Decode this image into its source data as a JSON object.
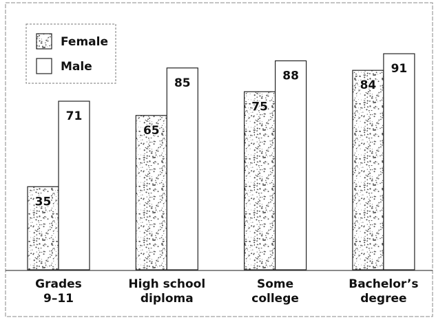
{
  "chart_data": {
    "type": "bar",
    "categories": [
      [
        "Grades",
        "9–11"
      ],
      [
        "High school",
        "diploma"
      ],
      [
        "Some",
        "college"
      ],
      [
        "Bachelor’s",
        "degree"
      ]
    ],
    "series": [
      {
        "name": "Female",
        "color": "#555555",
        "values": [
          35,
          65,
          75,
          84
        ]
      },
      {
        "name": "Male",
        "color": "#ffffff",
        "values": [
          71,
          85,
          88,
          91
        ]
      }
    ],
    "ylim": [
      0,
      100
    ],
    "legend": "upper left"
  }
}
